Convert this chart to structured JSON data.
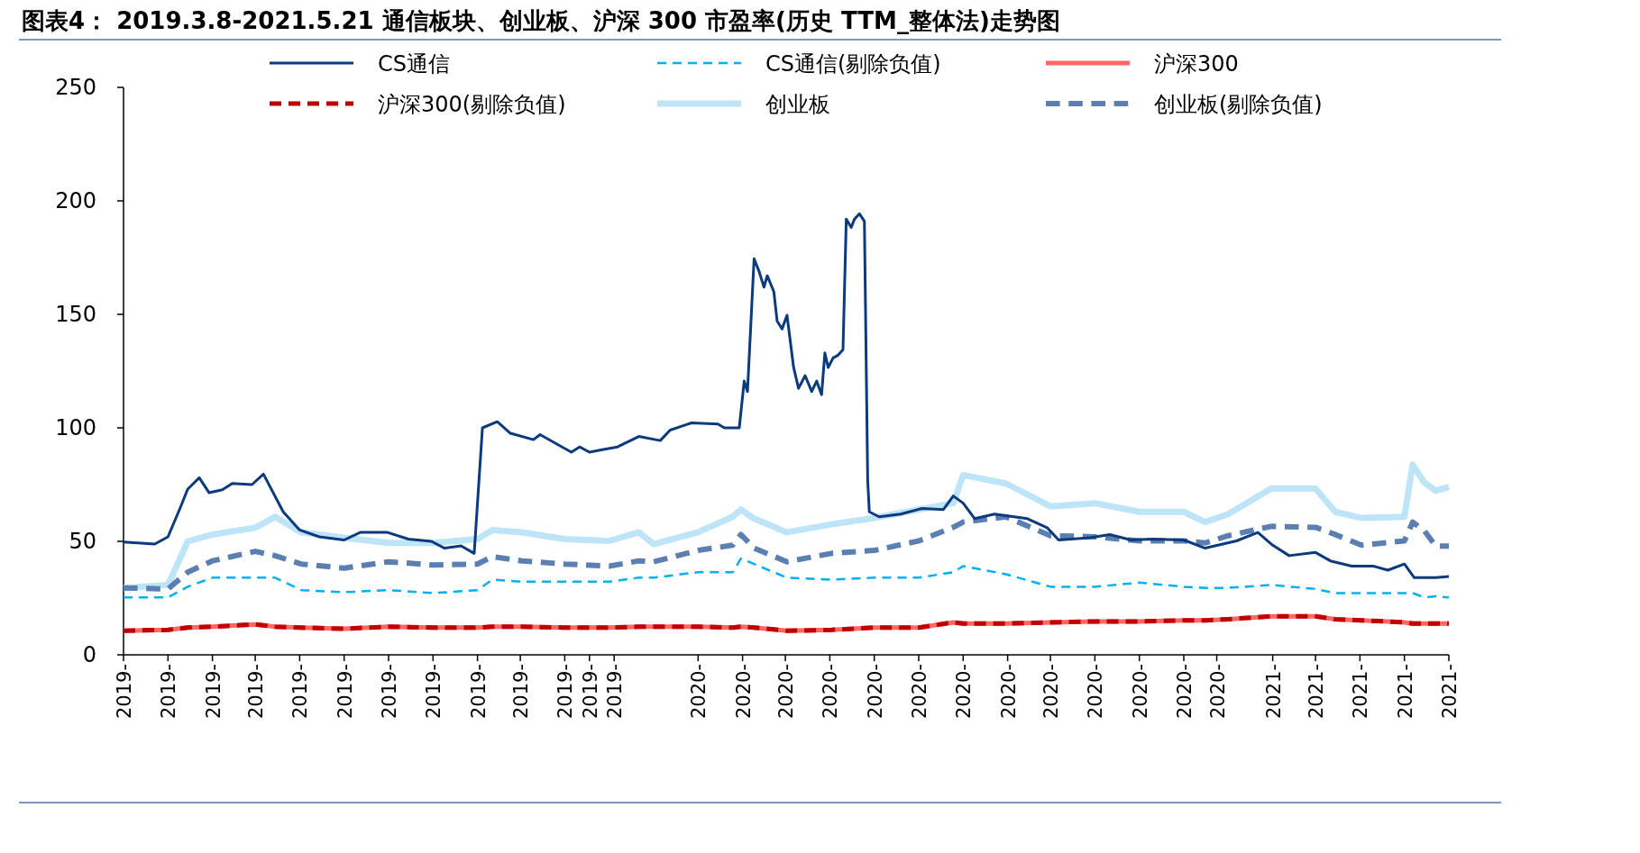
{
  "chart_data": {
    "type": "line",
    "title": "图表4：  2019.3.8-2021.5.21 通信板块、创业板、沪深 300 市盈率(历史 TTM_整体法)走势图",
    "legend": "top",
    "ylim": [
      0,
      250
    ],
    "yticks": [
      0,
      50,
      100,
      150,
      200,
      250
    ],
    "xlim": [
      "2019-03-08",
      "2021-05-21"
    ],
    "xticks": [
      {
        "value": "2019-03-08",
        "label": "2019-"
      },
      {
        "value": "2019-04-04",
        "label": "2019-"
      },
      {
        "value": "2019-05-01",
        "label": "2019-"
      },
      {
        "value": "2019-05-27",
        "label": "2019-"
      },
      {
        "value": "2019-06-23",
        "label": "2019-"
      },
      {
        "value": "2019-07-20",
        "label": "2019-"
      },
      {
        "value": "2019-08-16",
        "label": "2019-"
      },
      {
        "value": "2019-09-12",
        "label": "2019-"
      },
      {
        "value": "2019-10-09",
        "label": "2019-"
      },
      {
        "value": "2019-11-04",
        "label": "2019-"
      },
      {
        "value": "2019-12-01",
        "label": "2019-"
      },
      {
        "value": "2019-12-16",
        "label": "2019-"
      },
      {
        "value": "2019-12-31",
        "label": "2019-"
      },
      {
        "value": "2020-02-20",
        "label": "2020-"
      },
      {
        "value": "2020-03-18",
        "label": "2020-"
      },
      {
        "value": "2020-04-13",
        "label": "2020-"
      },
      {
        "value": "2020-05-10",
        "label": "2020-"
      },
      {
        "value": "2020-06-06",
        "label": "2020-"
      },
      {
        "value": "2020-07-03",
        "label": "2020-"
      },
      {
        "value": "2020-07-30",
        "label": "2020-"
      },
      {
        "value": "2020-08-26",
        "label": "2020-"
      },
      {
        "value": "2020-09-21",
        "label": "2020-"
      },
      {
        "value": "2020-10-18",
        "label": "2020-"
      },
      {
        "value": "2020-11-14",
        "label": "2020-"
      },
      {
        "value": "2020-12-11",
        "label": "2020-"
      },
      {
        "value": "2020-12-31",
        "label": "2020-"
      },
      {
        "value": "2021-02-03",
        "label": "2021-"
      },
      {
        "value": "2021-03-01",
        "label": "2021-"
      },
      {
        "value": "2021-03-28",
        "label": "2021-"
      },
      {
        "value": "2021-04-24",
        "label": "2021-"
      },
      {
        "value": "2021-05-21",
        "label": "2021-"
      }
    ],
    "x": [
      "2019-03-08",
      "2019-04-04",
      "2019-04-16",
      "2019-05-01",
      "2019-05-27",
      "2019-06-08",
      "2019-06-24",
      "2019-07-20",
      "2019-08-16",
      "2019-09-12",
      "2019-10-09",
      "2019-10-18",
      "2019-11-05",
      "2019-12-01",
      "2019-12-28",
      "2020-01-15",
      "2020-01-24",
      "2020-02-20",
      "2020-03-12",
      "2020-03-17",
      "2020-03-25",
      "2020-04-14",
      "2020-05-11",
      "2020-06-06",
      "2020-07-03",
      "2020-07-24",
      "2020-07-30",
      "2020-08-25",
      "2020-09-21",
      "2020-10-18",
      "2020-11-14",
      "2020-12-11",
      "2020-12-24",
      "2021-01-07",
      "2021-02-02",
      "2021-03-01",
      "2021-03-13",
      "2021-03-29",
      "2021-04-24",
      "2021-04-29",
      "2021-05-06",
      "2021-05-13",
      "2021-05-21"
    ],
    "series": [
      {
        "name": "CS通信",
        "color": "#0b3a7e",
        "line_style": "solid",
        "x": [
          "2019-03-08",
          "2019-03-27",
          "2019-04-04",
          "2019-04-11",
          "2019-04-16",
          "2019-04-23",
          "2019-04-29",
          "2019-05-07",
          "2019-05-13",
          "2019-05-25",
          "2019-06-01",
          "2019-06-13",
          "2019-06-23",
          "2019-07-05",
          "2019-07-20",
          "2019-07-30",
          "2019-08-15",
          "2019-08-28",
          "2019-09-11",
          "2019-09-19",
          "2019-09-29",
          "2019-10-07",
          "2019-10-12",
          "2019-10-21",
          "2019-10-29",
          "2019-11-12",
          "2019-11-16",
          "2019-12-05",
          "2019-12-10",
          "2019-12-16",
          "2019-12-26",
          "2020-01-02",
          "2020-01-15",
          "2020-01-28",
          "2020-02-03",
          "2020-02-16",
          "2020-03-03",
          "2020-03-07",
          "2020-03-16",
          "2020-03-19",
          "2020-03-21",
          "2020-03-25",
          "2020-03-28",
          "2020-03-31",
          "2020-04-02",
          "2020-04-06",
          "2020-04-08",
          "2020-04-11",
          "2020-04-14",
          "2020-04-18",
          "2020-04-21",
          "2020-04-25",
          "2020-04-29",
          "2020-05-02",
          "2020-05-05",
          "2020-05-07",
          "2020-05-09",
          "2020-05-12",
          "2020-05-15",
          "2020-05-18",
          "2020-05-20",
          "2020-05-23",
          "2020-05-25",
          "2020-05-28",
          "2020-05-31",
          "2020-06-02",
          "2020-06-03",
          "2020-06-09",
          "2020-06-22",
          "2020-07-05",
          "2020-07-18",
          "2020-07-24",
          "2020-07-30",
          "2020-08-06",
          "2020-08-18",
          "2020-09-07",
          "2020-09-19",
          "2020-09-26",
          "2020-10-15",
          "2020-10-27",
          "2020-11-09",
          "2020-11-22",
          "2020-12-11",
          "2020-12-24",
          "2021-01-12",
          "2021-01-25",
          "2021-02-03",
          "2021-02-13",
          "2021-03-01",
          "2021-03-10",
          "2021-03-23",
          "2021-04-05",
          "2021-04-14",
          "2021-04-24",
          "2021-04-30",
          "2021-05-13",
          "2021-05-21"
        ],
        "values": [
          49.7,
          48.8,
          52,
          64,
          73,
          78,
          71.4,
          72.7,
          75.5,
          75,
          79.6,
          63,
          55,
          52,
          50.6,
          54,
          54,
          51,
          50,
          47,
          48,
          44.7,
          100,
          102.7,
          97.6,
          94.8,
          97,
          89.3,
          91.6,
          89.3,
          90.7,
          91.6,
          96.2,
          94.4,
          99,
          102.2,
          101.7,
          100,
          100,
          120.6,
          116,
          174.5,
          169,
          162,
          167,
          160,
          147,
          143.6,
          149.6,
          126.6,
          117.4,
          123,
          116,
          120.6,
          114.6,
          133,
          126.6,
          130.8,
          132,
          134.4,
          192,
          188.3,
          192,
          194.3,
          191,
          76.9,
          63,
          60.8,
          62,
          64.5,
          64,
          70,
          66.8,
          60,
          62,
          60,
          56,
          50.6,
          51.6,
          53,
          50.6,
          51,
          50.6,
          47,
          50.2,
          53.9,
          48.3,
          43.7,
          45.1,
          41.4,
          39.1,
          39.1,
          37.3,
          40,
          34,
          34,
          34.5
        ]
      },
      {
        "name": "CS通信(剔除负值)",
        "color": "#00b0f0",
        "line_style": "dashed",
        "values": [
          25.3,
          25.3,
          30,
          34,
          34,
          34,
          28.5,
          27.6,
          28.5,
          27.2,
          28.5,
          33.1,
          32.2,
          32.2,
          32.2,
          34,
          34,
          36.4,
          36.4,
          42.4,
          40,
          34,
          33.1,
          34,
          34,
          36.4,
          39.1,
          35.5,
          30,
          30,
          31.8,
          30,
          29.5,
          29.5,
          30.8,
          29,
          27.2,
          27.2,
          27.2,
          27.2,
          25.3,
          25.8,
          25.3
        ]
      },
      {
        "name": "沪深300",
        "color": "#ff6666",
        "line_style": "solid",
        "values": [
          10.6,
          11,
          12,
          12.4,
          13.4,
          12.4,
          12,
          11.5,
          12.4,
          12,
          12,
          12.4,
          12.4,
          12,
          12,
          12.4,
          12.4,
          12.4,
          12,
          12.4,
          12,
          10.6,
          11,
          12,
          12,
          14.3,
          13.8,
          13.8,
          14.3,
          14.7,
          14.7,
          15.2,
          15.2,
          15.7,
          17,
          17,
          15.7,
          15.2,
          14.3,
          13.8,
          13.8,
          13.8,
          13.8
        ]
      },
      {
        "name": "沪深300(剔除负值)",
        "color": "#c00000",
        "line_style": "dashed",
        "values": [
          10.6,
          11,
          12,
          12.4,
          13.4,
          12.4,
          12,
          11.5,
          12.4,
          12,
          12,
          12.4,
          12.4,
          12,
          12,
          12.4,
          12.4,
          12.4,
          12,
          12.4,
          12,
          10.6,
          11,
          12,
          12,
          14.3,
          13.8,
          13.8,
          14.3,
          14.7,
          14.7,
          15.2,
          15.2,
          15.7,
          17,
          17,
          15.7,
          15.2,
          14.3,
          13.8,
          13.8,
          13.8,
          13.8
        ]
      },
      {
        "name": "创业板",
        "color": "#bde4f7",
        "line_style": "solid",
        "values": [
          29.5,
          30.8,
          50,
          53,
          56,
          60.8,
          54,
          51.6,
          49.3,
          49.3,
          51,
          55,
          54,
          51,
          50.2,
          54,
          48.8,
          54,
          60.8,
          64,
          60,
          54,
          57.5,
          60.3,
          64,
          66.8,
          79.2,
          75.5,
          65.4,
          66.8,
          63,
          63,
          58.5,
          62,
          73.2,
          73.2,
          63,
          60.3,
          60.8,
          83.8,
          76,
          72.3,
          74
        ]
      },
      {
        "name": "创业板(剔除负值)",
        "color": "#5b7fb0",
        "line_style": "dashed",
        "values": [
          29.5,
          29,
          36.4,
          41.4,
          45.6,
          43.7,
          40,
          38.2,
          41,
          39.6,
          40,
          43.3,
          41.4,
          40,
          39.1,
          41.4,
          41,
          46,
          48.3,
          53,
          47,
          41,
          44.7,
          46,
          50.2,
          56.2,
          58.5,
          60.8,
          52.5,
          52,
          50.2,
          50.2,
          49.3,
          52.5,
          56.6,
          56.2,
          53,
          48.3,
          50.2,
          58.5,
          54.8,
          47.9,
          47.9
        ]
      }
    ]
  }
}
